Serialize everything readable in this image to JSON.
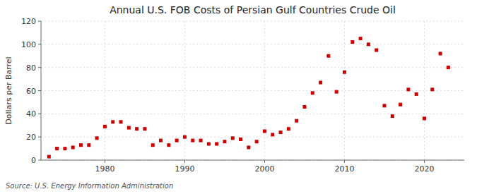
{
  "chart_data": {
    "type": "scatter",
    "title": "Annual U.S. FOB Costs of Persian Gulf Countries Crude Oil",
    "y_label": "Dollars per Barrel",
    "annotations": [
      "Source: U.S. Energy Information Administration"
    ],
    "x": [
      1973,
      1974,
      1975,
      1976,
      1977,
      1978,
      1979,
      1980,
      1981,
      1982,
      1983,
      1984,
      1985,
      1986,
      1987,
      1988,
      1989,
      1990,
      1991,
      1992,
      1993,
      1994,
      1995,
      1996,
      1997,
      1998,
      1999,
      2000,
      2001,
      2002,
      2003,
      2004,
      2005,
      2006,
      2007,
      2008,
      2009,
      2010,
      2011,
      2012,
      2013,
      2014,
      2015,
      2016,
      2017,
      2018,
      2019,
      2020,
      2021,
      2022,
      2023
    ],
    "values": [
      3,
      10,
      10,
      11,
      13,
      13,
      19,
      29,
      33,
      33,
      28,
      27,
      27,
      13,
      17,
      13,
      17,
      20,
      17,
      17,
      14,
      14,
      16,
      19,
      18,
      11,
      16,
      25,
      22,
      24,
      27,
      34,
      46,
      58,
      67,
      90,
      59,
      76,
      102,
      105,
      100,
      95,
      47,
      38,
      48,
      61,
      57,
      36,
      61,
      92,
      80
    ],
    "color": "#cc0000",
    "marker": "square",
    "xlim": [
      1972,
      2025
    ],
    "xticks": [
      1980,
      1990,
      2000,
      2010,
      2020
    ],
    "ylim": [
      0,
      120
    ],
    "yticks": [
      0,
      20,
      40,
      60,
      80,
      100,
      120
    ],
    "grid": true
  }
}
